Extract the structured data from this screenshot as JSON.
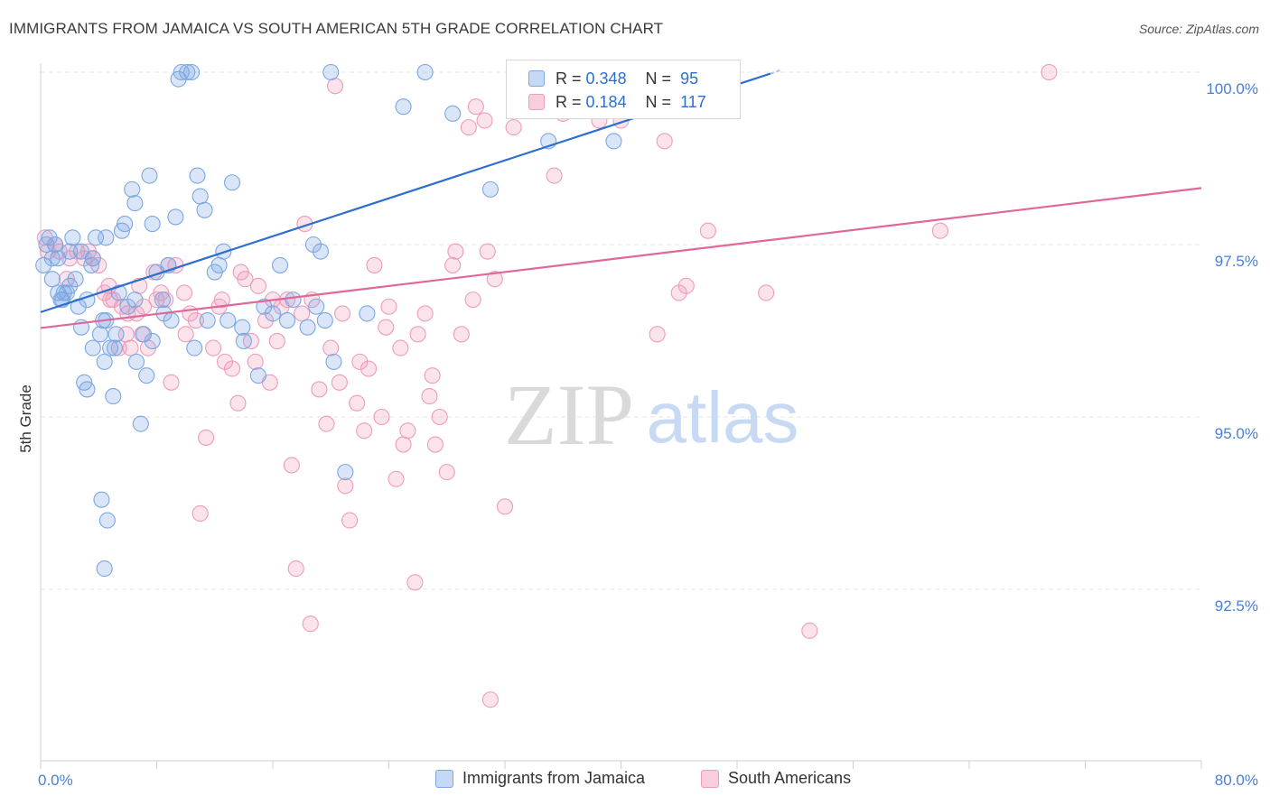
{
  "title": "IMMIGRANTS FROM JAMAICA VS SOUTH AMERICAN 5TH GRADE CORRELATION CHART",
  "source": "Source: ZipAtlas.com",
  "watermark": {
    "zip": "ZIP",
    "atlas": "atlas"
  },
  "colors": {
    "blue": "#7ba7e4",
    "blue_line": "#2d6fcf",
    "pink": "#ef9bbb",
    "pink_line": "#e0679a",
    "tick_label": "#4a7fd4",
    "grid": "#e6e6e6"
  },
  "stats": [
    {
      "r_label": "R =",
      "r_value": "0.348",
      "n_label": "N =",
      "n_value": "95"
    },
    {
      "r_label": "R =",
      "r_value": "0.184",
      "n_label": "N =",
      "n_value": "117"
    }
  ],
  "chart_data": {
    "type": "scatter",
    "title": "IMMIGRANTS FROM JAMAICA VS SOUTH AMERICAN 5TH GRADE CORRELATION CHART",
    "xlabel": "",
    "ylabel": "5th Grade",
    "xlim": [
      0,
      80
    ],
    "ylim": [
      90.5,
      100.2
    ],
    "x_tick_labels": [
      "0.0%",
      "80.0%"
    ],
    "y_ticks": [
      92.5,
      95.0,
      97.5,
      100.0
    ],
    "y_tick_labels": [
      "92.5%",
      "95.0%",
      "97.5%",
      "100.0%"
    ],
    "grid": true,
    "legend_placement": "bottom",
    "series": [
      {
        "name": "Immigrants from Jamaica",
        "color": "#7ba7e4",
        "trend": {
          "x": [
            0,
            50.3
          ],
          "y": [
            96.52,
            99.98
          ]
        },
        "points": [
          [
            0.2,
            97.2
          ],
          [
            0.4,
            97.5
          ],
          [
            0.6,
            97.6
          ],
          [
            0.8,
            97.3
          ],
          [
            1.0,
            97.5
          ],
          [
            1.2,
            96.8
          ],
          [
            1.5,
            96.7
          ],
          [
            1.6,
            96.8
          ],
          [
            1.8,
            96.8
          ],
          [
            2.0,
            96.9
          ],
          [
            2.2,
            97.6
          ],
          [
            2.4,
            97.0
          ],
          [
            2.6,
            96.6
          ],
          [
            2.8,
            97.4
          ],
          [
            3.0,
            95.5
          ],
          [
            3.2,
            95.4
          ],
          [
            3.5,
            97.2
          ],
          [
            3.6,
            97.3
          ],
          [
            3.8,
            97.6
          ],
          [
            4.1,
            96.2
          ],
          [
            4.3,
            96.4
          ],
          [
            4.5,
            97.6
          ],
          [
            4.8,
            96.0
          ],
          [
            5.0,
            95.3
          ],
          [
            5.2,
            96.2
          ],
          [
            5.4,
            96.8
          ],
          [
            5.6,
            97.7
          ],
          [
            5.8,
            97.8
          ],
          [
            6.0,
            96.6
          ],
          [
            6.3,
            98.3
          ],
          [
            6.5,
            98.1
          ],
          [
            6.6,
            95.8
          ],
          [
            6.9,
            94.9
          ],
          [
            7.1,
            96.2
          ],
          [
            7.3,
            95.6
          ],
          [
            7.5,
            98.5
          ],
          [
            7.7,
            97.8
          ],
          [
            8.0,
            97.1
          ],
          [
            8.4,
            96.7
          ],
          [
            8.8,
            97.2
          ],
          [
            9.0,
            96.4
          ],
          [
            9.3,
            97.9
          ],
          [
            9.5,
            99.9
          ],
          [
            9.7,
            100.0
          ],
          [
            10.1,
            100.0
          ],
          [
            10.4,
            100.0
          ],
          [
            10.8,
            98.5
          ],
          [
            11.0,
            98.2
          ],
          [
            11.3,
            98.0
          ],
          [
            12.0,
            97.1
          ],
          [
            12.6,
            97.4
          ],
          [
            12.9,
            96.4
          ],
          [
            13.2,
            98.4
          ],
          [
            14.0,
            96.1
          ],
          [
            15.0,
            95.6
          ],
          [
            15.4,
            96.6
          ],
          [
            16.0,
            96.5
          ],
          [
            17.0,
            96.4
          ],
          [
            17.4,
            96.7
          ],
          [
            18.4,
            96.3
          ],
          [
            18.8,
            97.5
          ],
          [
            19.0,
            96.6
          ],
          [
            19.6,
            96.4
          ],
          [
            20.0,
            100.0
          ],
          [
            20.2,
            95.8
          ],
          [
            21.0,
            94.2
          ],
          [
            22.5,
            96.5
          ],
          [
            25.0,
            99.5
          ],
          [
            26.5,
            100.0
          ],
          [
            28.4,
            99.4
          ],
          [
            31.0,
            98.3
          ],
          [
            35.0,
            99.0
          ],
          [
            39.5,
            99.0
          ],
          [
            2.8,
            96.3
          ],
          [
            3.6,
            96.0
          ],
          [
            5.1,
            96.0
          ],
          [
            4.4,
            95.8
          ],
          [
            4.2,
            93.8
          ],
          [
            4.6,
            93.5
          ],
          [
            4.4,
            92.8
          ],
          [
            6.5,
            96.7
          ],
          [
            7.7,
            96.1
          ],
          [
            10.6,
            96.0
          ],
          [
            12.3,
            97.2
          ],
          [
            13.9,
            96.3
          ],
          [
            3.2,
            96.7
          ],
          [
            2.0,
            97.4
          ],
          [
            1.2,
            97.3
          ],
          [
            0.8,
            97.0
          ],
          [
            4.5,
            96.4
          ],
          [
            8.5,
            96.5
          ],
          [
            11.5,
            96.4
          ],
          [
            1.4,
            96.7
          ],
          [
            16.5,
            97.2
          ],
          [
            19.3,
            97.4
          ]
        ]
      },
      {
        "name": "South Americans",
        "color": "#ef9bbb",
        "trend": {
          "x": [
            0,
            80
          ],
          "y": [
            96.29,
            98.32
          ]
        },
        "points": [
          [
            0.3,
            97.6
          ],
          [
            0.5,
            97.4
          ],
          [
            1.0,
            97.5
          ],
          [
            1.3,
            97.4
          ],
          [
            1.8,
            97.0
          ],
          [
            2.5,
            97.4
          ],
          [
            3.0,
            97.3
          ],
          [
            3.6,
            97.3
          ],
          [
            4.0,
            97.2
          ],
          [
            4.4,
            96.8
          ],
          [
            4.8,
            96.7
          ],
          [
            5.0,
            96.7
          ],
          [
            5.6,
            96.6
          ],
          [
            5.9,
            96.2
          ],
          [
            6.2,
            96.0
          ],
          [
            6.6,
            96.5
          ],
          [
            7.0,
            96.2
          ],
          [
            7.4,
            96.0
          ],
          [
            7.8,
            97.1
          ],
          [
            8.3,
            96.8
          ],
          [
            8.8,
            97.2
          ],
          [
            9.3,
            97.2
          ],
          [
            9.9,
            96.8
          ],
          [
            10.3,
            96.5
          ],
          [
            10.7,
            96.4
          ],
          [
            11.4,
            94.7
          ],
          [
            11.9,
            96.0
          ],
          [
            12.3,
            96.6
          ],
          [
            12.7,
            95.8
          ],
          [
            13.2,
            95.7
          ],
          [
            13.6,
            95.2
          ],
          [
            14.1,
            97.0
          ],
          [
            14.5,
            96.1
          ],
          [
            15.0,
            96.9
          ],
          [
            15.5,
            96.4
          ],
          [
            16.0,
            96.7
          ],
          [
            16.6,
            96.6
          ],
          [
            17.3,
            94.3
          ],
          [
            17.6,
            92.8
          ],
          [
            18.2,
            97.8
          ],
          [
            18.7,
            96.7
          ],
          [
            19.2,
            95.4
          ],
          [
            19.7,
            94.9
          ],
          [
            20.3,
            99.8
          ],
          [
            20.8,
            96.5
          ],
          [
            21.3,
            93.5
          ],
          [
            21.8,
            95.2
          ],
          [
            22.3,
            94.8
          ],
          [
            22.6,
            95.7
          ],
          [
            23.0,
            97.2
          ],
          [
            23.5,
            95.0
          ],
          [
            24.0,
            96.6
          ],
          [
            24.5,
            94.1
          ],
          [
            25.0,
            94.6
          ],
          [
            25.3,
            94.8
          ],
          [
            26.0,
            96.2
          ],
          [
            26.5,
            96.5
          ],
          [
            27.0,
            95.6
          ],
          [
            27.5,
            95.0
          ],
          [
            28.0,
            94.2
          ],
          [
            28.4,
            97.2
          ],
          [
            29.0,
            96.2
          ],
          [
            29.5,
            99.2
          ],
          [
            30.0,
            99.5
          ],
          [
            30.6,
            99.3
          ],
          [
            31.0,
            90.9
          ],
          [
            32.0,
            93.7
          ],
          [
            32.6,
            99.2
          ],
          [
            34.5,
            99.5
          ],
          [
            35.4,
            98.5
          ],
          [
            36.0,
            99.4
          ],
          [
            37.0,
            100.0
          ],
          [
            38.5,
            99.3
          ],
          [
            40.0,
            99.3
          ],
          [
            41.0,
            99.5
          ],
          [
            42.5,
            96.2
          ],
          [
            43.0,
            99.0
          ],
          [
            44.0,
            96.8
          ],
          [
            44.5,
            96.9
          ],
          [
            46.0,
            97.7
          ],
          [
            50.0,
            96.8
          ],
          [
            53.0,
            91.9
          ],
          [
            62.0,
            97.7
          ],
          [
            69.5,
            100.0
          ],
          [
            6.8,
            96.9
          ],
          [
            8.0,
            96.7
          ],
          [
            9.0,
            95.5
          ],
          [
            10.0,
            96.2
          ],
          [
            11.0,
            93.6
          ],
          [
            12.5,
            96.7
          ],
          [
            13.8,
            97.1
          ],
          [
            14.8,
            95.8
          ],
          [
            15.8,
            95.5
          ],
          [
            16.3,
            96.1
          ],
          [
            17.0,
            96.7
          ],
          [
            18.0,
            96.5
          ],
          [
            18.6,
            92.0
          ],
          [
            20.0,
            96.0
          ],
          [
            20.6,
            95.5
          ],
          [
            21.0,
            94.0
          ],
          [
            22.0,
            95.8
          ],
          [
            23.8,
            96.3
          ],
          [
            24.8,
            96.0
          ],
          [
            25.8,
            92.6
          ],
          [
            26.8,
            95.3
          ],
          [
            27.2,
            94.6
          ],
          [
            28.6,
            97.4
          ],
          [
            29.8,
            96.7
          ],
          [
            30.8,
            97.4
          ],
          [
            31.3,
            97.0
          ],
          [
            2.0,
            97.3
          ],
          [
            3.3,
            97.4
          ],
          [
            4.7,
            96.9
          ],
          [
            5.4,
            96.0
          ],
          [
            6.0,
            96.5
          ],
          [
            7.1,
            96.6
          ],
          [
            8.6,
            96.7
          ]
        ]
      }
    ]
  },
  "legend": {
    "items": [
      {
        "label": "Immigrants from Jamaica"
      },
      {
        "label": "South Americans"
      }
    ]
  }
}
